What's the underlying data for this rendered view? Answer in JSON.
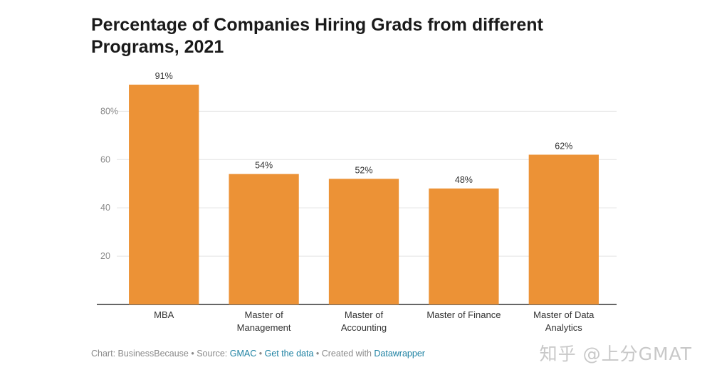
{
  "chart_data": {
    "type": "bar",
    "title": "Percentage of Companies Hiring Grads from different Programs, 2021",
    "categories": [
      [
        "MBA"
      ],
      [
        "Master of",
        "Management"
      ],
      [
        "Master of",
        "Accounting"
      ],
      [
        "Master of Finance"
      ],
      [
        "Master of Data",
        "Analytics"
      ]
    ],
    "values": [
      91,
      54,
      52,
      48,
      62
    ],
    "value_labels": [
      "91%",
      "54%",
      "52%",
      "48%",
      "62%"
    ],
    "yticks": [
      20,
      40,
      60,
      80
    ],
    "ytick_labels": [
      "20",
      "40",
      "60",
      "80%"
    ],
    "ylim": [
      0,
      91
    ],
    "xlabel": "",
    "ylabel": "",
    "grid": true,
    "bar_color": "#ec9236"
  },
  "footer": {
    "prefix": "Chart: BusinessBecause • Source: ",
    "source_link": "GMAC",
    "sep1": " • ",
    "data_link": "Get the data",
    "sep2": " • Created with ",
    "tool_link": "Datawrapper"
  },
  "watermark": "知乎 @上分GMAT"
}
